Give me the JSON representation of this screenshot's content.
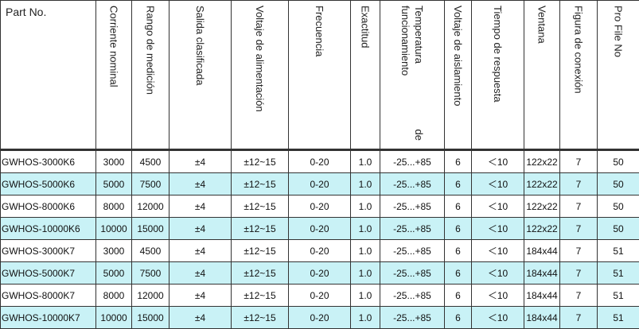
{
  "table": {
    "header": [
      "Part No.",
      "Corriente nominal",
      "Rango de medición",
      "Salida clasificada",
      "Voltaje de alimentación",
      "Frecuencia",
      "Exactitud",
      "Temperatura de funcionamiento",
      "Voltaje de aislamiento",
      "Tiempo de respuesta",
      "Ventana",
      "Figura de conexión",
      "Pro File No"
    ],
    "rows": [
      [
        "GWHOS-3000K6",
        "3000",
        "4500",
        "±4",
        "±12~15",
        "0-20",
        "1.0",
        "-25...+85",
        "6",
        "＜10",
        "122x22",
        "7",
        "50"
      ],
      [
        "GWHOS-5000K6",
        "5000",
        "7500",
        "±4",
        "±12~15",
        "0-20",
        "1.0",
        "-25...+85",
        "6",
        "＜10",
        "122x22",
        "7",
        "50"
      ],
      [
        "GWHOS-8000K6",
        "8000",
        "12000",
        "±4",
        "±12~15",
        "0-20",
        "1.0",
        "-25...+85",
        "6",
        "＜10",
        "122x22",
        "7",
        "50"
      ],
      [
        "GWHOS-10000K6",
        "10000",
        "15000",
        "±4",
        "±12~15",
        "0-20",
        "1.0",
        "-25...+85",
        "6",
        "＜10",
        "122x22",
        "7",
        "50"
      ],
      [
        "GWHOS-3000K7",
        "3000",
        "4500",
        "±4",
        "±12~15",
        "0-20",
        "1.0",
        "-25...+85",
        "6",
        "＜10",
        "184x44",
        "7",
        "51"
      ],
      [
        "GWHOS-5000K7",
        "5000",
        "7500",
        "±4",
        "±12~15",
        "0-20",
        "1.0",
        "-25...+85",
        "6",
        "＜10",
        "184x44",
        "7",
        "51"
      ],
      [
        "GWHOS-8000K7",
        "8000",
        "12000",
        "±4",
        "±12~15",
        "0-20",
        "1.0",
        "-25...+85",
        "6",
        "＜10",
        "184x44",
        "7",
        "51"
      ],
      [
        "GWHOS-10000K7",
        "10000",
        "15000",
        "±4",
        "±12~15",
        "0-20",
        "1.0",
        "-25...+85",
        "6",
        "＜10",
        "184x44",
        "7",
        "51"
      ]
    ]
  }
}
